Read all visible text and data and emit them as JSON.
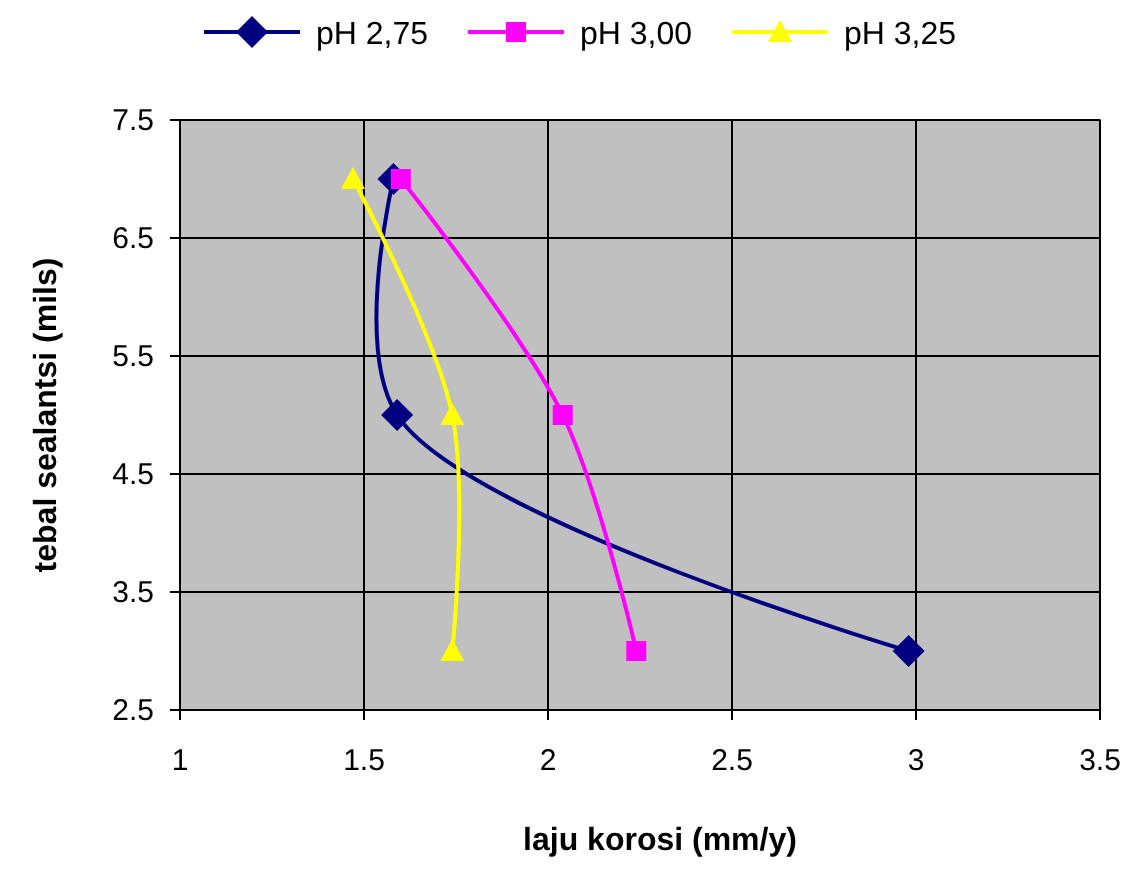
{
  "chart_data": {
    "type": "line",
    "xlabel": "laju korosi (mm/y)",
    "ylabel": "tebal sealantsi (mils)",
    "xlim": [
      1,
      3.5
    ],
    "xticks": [
      1,
      1.5,
      2,
      2.5,
      3,
      3.5
    ],
    "ylim": [
      2.5,
      7.5
    ],
    "yticks": [
      2.5,
      3.5,
      4.5,
      5.5,
      6.5,
      7.5
    ],
    "grid": true,
    "legend": "top",
    "series": [
      {
        "name": "pH 2,75",
        "color": "#000080",
        "marker": "diamond",
        "x": [
          1.58,
          1.59,
          2.98
        ],
        "values": [
          7,
          5,
          3
        ]
      },
      {
        "name": "pH 3,00",
        "color": "#ff00ff",
        "marker": "square",
        "x": [
          1.6,
          2.04,
          2.24
        ],
        "values": [
          7,
          5,
          3
        ]
      },
      {
        "name": "pH 3,25",
        "color": "#ffff00",
        "marker": "triangle",
        "x": [
          1.47,
          1.74,
          1.74
        ],
        "values": [
          7,
          5,
          3
        ]
      }
    ]
  }
}
